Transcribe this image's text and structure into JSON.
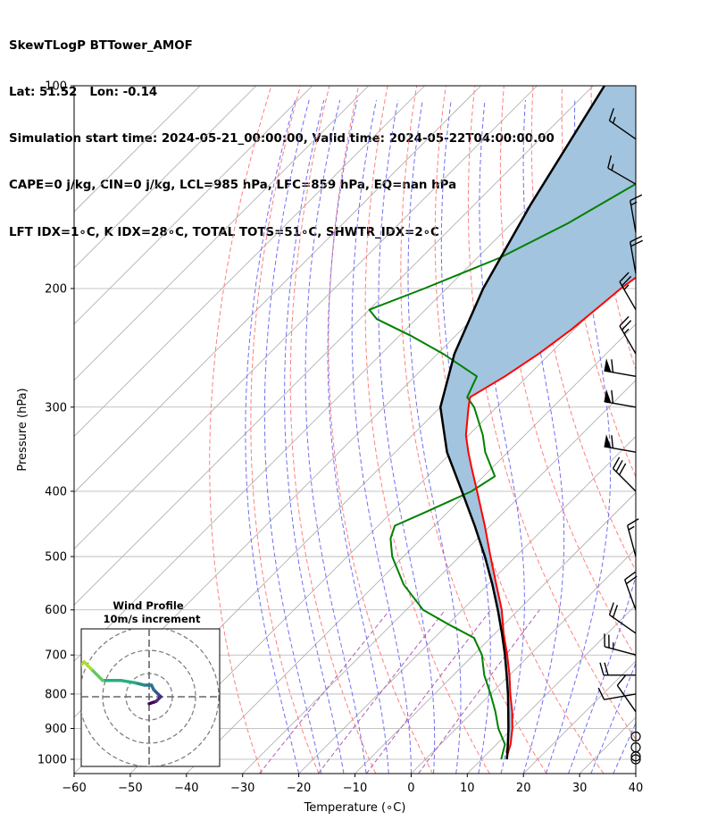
{
  "header": {
    "line1": "SkewTLogP BTTower_AMOF",
    "line2": "Lat: 51.52   Lon: -0.14",
    "line3": "Simulation start time: 2024-05-21_00:00:00, Valid time: 2024-05-22T04:00:00.00",
    "line4": "CAPE=0 j/kg, CIN=0 j/kg, LCL=985 hPa, LFC=859 hPa, EQ=nan hPa",
    "line5": "LFT IDX=1∘C, K IDX=28∘C, TOTAL TOTS=51∘C, SHWTR_IDX=2∘C"
  },
  "chart_data": [
    {
      "type": "line",
      "subtype": "skew-T log-P",
      "xlabel": "Temperature (∘C)",
      "ylabel": "Pressure (hPa)",
      "xlim": [
        -60,
        40
      ],
      "ylim_pressure": [
        1050,
        100
      ],
      "y_scale": "log",
      "x_ticks": [
        -60,
        -50,
        -40,
        -30,
        -20,
        -10,
        0,
        10,
        20,
        30,
        40
      ],
      "y_ticks": [
        1000,
        900,
        800,
        700,
        600,
        500,
        400,
        300,
        200,
        100
      ],
      "skew_degrees": 45,
      "grid": true,
      "colors": {
        "temperature": "#ff0000",
        "dewpoint": "#008000",
        "parcel": "#000000",
        "cape_fill": "#a2c4de",
        "dry_adiabats": "#ff7f7f",
        "moist_adiabats": "#6f6ff5",
        "mixing_ratio": "#b05cb0",
        "isotherms": "#aaaaaa"
      },
      "series": [
        {
          "key": "temperature",
          "pressure": [
            1000,
            990,
            950,
            900,
            850,
            800,
            750,
            700,
            650,
            600,
            550,
            500,
            450,
            400,
            370,
            350,
            330,
            300,
            290,
            270,
            250,
            230,
            210,
            200,
            185,
            170,
            160,
            150,
            140,
            130,
            120,
            110,
            100
          ],
          "temp": [
            14.5,
            14.0,
            12.5,
            10.0,
            7.0,
            3.5,
            0.0,
            -4.0,
            -8.5,
            -13.0,
            -18.5,
            -24.5,
            -31.0,
            -38.5,
            -43.5,
            -47.0,
            -50.5,
            -55.0,
            -56.5,
            -54.0,
            -52.0,
            -50.5,
            -49.5,
            -49.0,
            -47.5,
            -46.0,
            -44.5,
            -43.0,
            -41.5,
            -40.0,
            -38.5,
            -37.0,
            -36.0
          ]
        },
        {
          "key": "dewpoint",
          "pressure": [
            1000,
            950,
            900,
            850,
            800,
            750,
            700,
            660,
            630,
            600,
            550,
            500,
            470,
            450,
            430,
            400,
            380,
            350,
            330,
            300,
            290,
            270,
            250,
            235,
            222,
            215,
            200,
            180,
            160,
            140,
            120,
            100
          ],
          "temp": [
            13.5,
            11.5,
            7.5,
            4.0,
            0.0,
            -4.5,
            -8.5,
            -13.0,
            -20.0,
            -27.0,
            -35.0,
            -42.0,
            -45.5,
            -47.0,
            -44.0,
            -39.5,
            -38.0,
            -44.0,
            -47.5,
            -54.0,
            -57.0,
            -59.0,
            -69.0,
            -78.0,
            -87.0,
            -90.0,
            -84.0,
            -76.0,
            -70.0,
            -65.0,
            -59.0,
            -52.0
          ]
        },
        {
          "key": "parcel",
          "pressure": [
            1000,
            985,
            950,
            900,
            850,
            800,
            750,
            700,
            650,
            600,
            550,
            500,
            450,
            400,
            350,
            300,
            250,
            200,
            150,
            100
          ],
          "temp": [
            14.5,
            13.8,
            12.0,
            9.3,
            6.3,
            3.1,
            -0.5,
            -4.4,
            -8.8,
            -13.7,
            -19.2,
            -25.5,
            -32.8,
            -41.2,
            -50.8,
            -60.0,
            -67.0,
            -73.5,
            -80.0,
            -88.0
          ]
        }
      ],
      "barbs": {
        "pressure": [
          1000,
          990,
          960,
          925,
          850,
          800,
          750,
          700,
          650,
          600,
          500,
          400,
          350,
          300,
          270,
          250,
          215,
          190,
          165,
          140,
          120
        ],
        "direction_deg": [
          0,
          0,
          0,
          0,
          325,
          260,
          270,
          285,
          305,
          340,
          345,
          315,
          280,
          280,
          280,
          330,
          330,
          350,
          350,
          300,
          305
        ],
        "speed": [
          0,
          0,
          0,
          0,
          10,
          10,
          20,
          25,
          20,
          20,
          15,
          30,
          60,
          60,
          60,
          25,
          25,
          20,
          15,
          15,
          15
        ]
      }
    },
    {
      "type": "line",
      "subtype": "hodograph",
      "title": "Wind Profile",
      "subtitle": "10m/s increment",
      "color_scale": "viridis",
      "u": [
        0,
        3,
        5,
        4,
        2,
        1,
        -2,
        -6,
        -12,
        -20,
        -25,
        -28,
        -30,
        -30
      ],
      "v": [
        -3,
        -2,
        0,
        1,
        3,
        5,
        5,
        6,
        7,
        7,
        12,
        15,
        13,
        10
      ]
    }
  ]
}
